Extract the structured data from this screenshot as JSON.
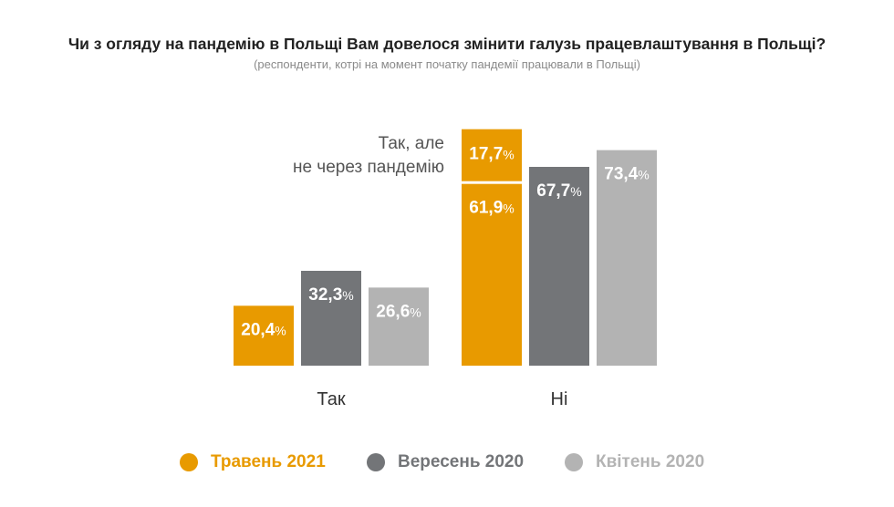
{
  "title": "Чи з огляду на пандемію в Польщі Вам довелося змінити галузь працевлаштування в Польщі?",
  "subtitle": "(респонденти, котрі на момент початку пандемії працювали в Польщі)",
  "chart_data": {
    "type": "bar",
    "stacked_segment_note": [
      "Так, але",
      "не через пандемію"
    ],
    "categories": [
      "Так",
      "Ні"
    ],
    "percent_sign": "%",
    "series": [
      {
        "name": "Травень 2021",
        "color": "#E89A00",
        "values": [
          20.4,
          61.9
        ],
        "labels": [
          "20,4",
          "61,9"
        ],
        "stack_extra": [
          null,
          17.7
        ],
        "stack_extra_labels": [
          null,
          "17,7"
        ]
      },
      {
        "name": "Вересень 2020",
        "color": "#737578",
        "values": [
          32.3,
          67.7
        ],
        "labels": [
          "32,3",
          "67,7"
        ]
      },
      {
        "name": "Квітень 2020",
        "color": "#B3B3B3",
        "values": [
          26.6,
          73.4
        ],
        "labels": [
          "26,6",
          "73,4"
        ]
      }
    ],
    "legend_position": "bottom",
    "grid": false
  },
  "legend": [
    {
      "label": "Травень 2021",
      "color": "#E89A00"
    },
    {
      "label": "Вересень 2020",
      "color": "#737578"
    },
    {
      "label": "Квітень 2020",
      "color": "#B3B3B3"
    }
  ]
}
